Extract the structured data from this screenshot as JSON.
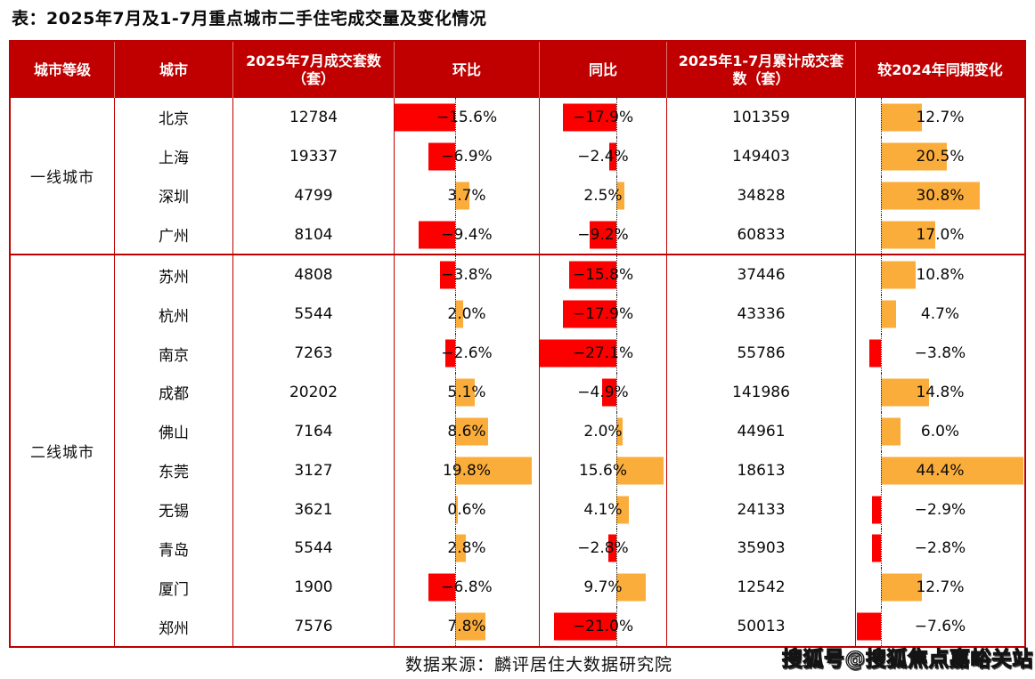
{
  "page": {
    "title": "表：2025年7月及1-7月重点城市二手住宅成交量及变化情况",
    "source_note": "数据来源：麟评居住大数据研究院",
    "watermark": "搜狐号@搜狐焦点嘉峪关站"
  },
  "colors": {
    "header_bg": "#C00000",
    "table_border": "#C00000",
    "negative_bar": "#FC0000",
    "positive_bar": "#FBAD3B"
  },
  "chart_data": {
    "type": "table",
    "title": "2025年7月及1-7月重点城市二手住宅成交量及变化情况",
    "columns": [
      "城市等级",
      "城市",
      "2025年7月成交套数（套）",
      "环比",
      "同比",
      "2025年1-7月累计成交套数（套）",
      "较2024年同期变化"
    ],
    "bar_axes": {
      "mom": {
        "min": -15.6,
        "max": 21.6
      },
      "yoy": {
        "min": -25.7,
        "max": 16.5
      },
      "chg": {
        "min": -7.9,
        "max": 44.7
      }
    },
    "groups": [
      {
        "tier": "一线城市",
        "rows": [
          {
            "city": "北京",
            "jul": "12784",
            "mom": -15.6,
            "yoy": -17.9,
            "cum": "101359",
            "chg": 12.7
          },
          {
            "city": "上海",
            "jul": "19337",
            "mom": -6.9,
            "yoy": -2.4,
            "cum": "149403",
            "chg": 20.5
          },
          {
            "city": "深圳",
            "jul": "4799",
            "mom": 3.7,
            "yoy": 2.5,
            "cum": "34828",
            "chg": 30.8
          },
          {
            "city": "广州",
            "jul": "8104",
            "mom": -9.4,
            "yoy": -9.2,
            "cum": "60833",
            "chg": 17.0
          }
        ]
      },
      {
        "tier": "二线城市",
        "rows": [
          {
            "city": "苏州",
            "jul": "4808",
            "mom": -3.8,
            "yoy": -15.8,
            "cum": "37446",
            "chg": 10.8
          },
          {
            "city": "杭州",
            "jul": "5544",
            "mom": 2.0,
            "yoy": -17.9,
            "cum": "43336",
            "chg": 4.7
          },
          {
            "city": "南京",
            "jul": "7263",
            "mom": -2.6,
            "yoy": -27.1,
            "cum": "55786",
            "chg": -3.8
          },
          {
            "city": "成都",
            "jul": "20202",
            "mom": 5.1,
            "yoy": -4.9,
            "cum": "141986",
            "chg": 14.8
          },
          {
            "city": "佛山",
            "jul": "7164",
            "mom": 8.6,
            "yoy": 2.0,
            "cum": "44961",
            "chg": 6.0
          },
          {
            "city": "东莞",
            "jul": "3127",
            "mom": 19.8,
            "yoy": 15.6,
            "cum": "18613",
            "chg": 44.4
          },
          {
            "city": "无锡",
            "jul": "3621",
            "mom": 0.6,
            "yoy": 4.1,
            "cum": "24133",
            "chg": -2.9
          },
          {
            "city": "青岛",
            "jul": "5544",
            "mom": 2.8,
            "yoy": -2.8,
            "cum": "35903",
            "chg": -2.8
          },
          {
            "city": "厦门",
            "jul": "1900",
            "mom": -6.8,
            "yoy": 9.7,
            "cum": "12542",
            "chg": 12.7
          },
          {
            "city": "郑州",
            "jul": "7576",
            "mom": 7.8,
            "yoy": -21.0,
            "cum": "50013",
            "chg": -7.6
          }
        ]
      }
    ],
    "source": "数据来源：麟评居住大数据研究院",
    "watermark": "搜狐号@搜狐焦点嘉峪关站"
  }
}
